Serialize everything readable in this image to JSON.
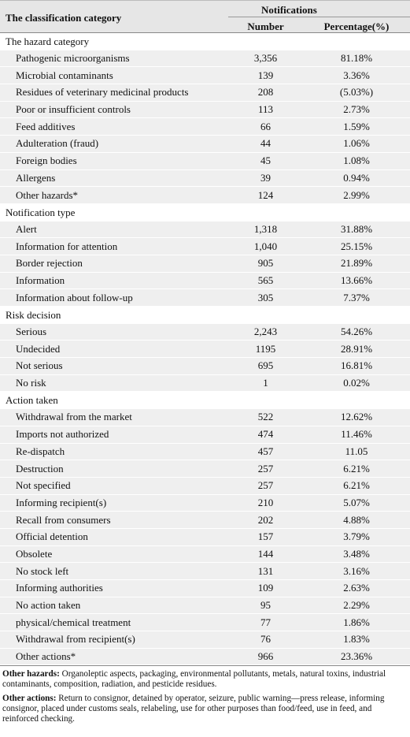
{
  "header": {
    "category": "The classification category",
    "group": "Notifications",
    "number": "Number",
    "percentage": "Percentage(%)"
  },
  "sections": [
    {
      "title": "The hazard category",
      "rows": [
        [
          "Pathogenic microorganisms",
          "3,356",
          "81.18%"
        ],
        [
          "Microbial contaminants",
          "139",
          "3.36%"
        ],
        [
          "Residues of veterinary medicinal products",
          "208",
          "(5.03%)"
        ],
        [
          "Poor or insufficient controls",
          "113",
          "2.73%"
        ],
        [
          "Feed additives",
          "66",
          "1.59%"
        ],
        [
          "Adulteration (fraud)",
          "44",
          "1.06%"
        ],
        [
          "Foreign bodies",
          "45",
          "1.08%"
        ],
        [
          "Allergens",
          "39",
          "0.94%"
        ],
        [
          "Other hazards*",
          "124",
          "2.99%"
        ]
      ]
    },
    {
      "title": "Notification type",
      "rows": [
        [
          "Alert",
          "1,318",
          "31.88%"
        ],
        [
          "Information for attention",
          "1,040",
          "25.15%"
        ],
        [
          "Border rejection",
          "905",
          "21.89%"
        ],
        [
          "Information",
          "565",
          "13.66%"
        ],
        [
          "Information about follow-up",
          "305",
          "7.37%"
        ]
      ]
    },
    {
      "title": "Risk decision",
      "rows": [
        [
          "Serious",
          "2,243",
          "54.26%"
        ],
        [
          "Undecided",
          "1195",
          "28.91%"
        ],
        [
          "Not serious",
          "695",
          "16.81%"
        ],
        [
          "No risk",
          "1",
          "0.02%"
        ]
      ]
    },
    {
      "title": "Action taken",
      "rows": [
        [
          "Withdrawal from the market",
          "522",
          "12.62%"
        ],
        [
          "Imports not authorized",
          "474",
          "11.46%"
        ],
        [
          "Re-dispatch",
          "457",
          "11.05"
        ],
        [
          "Destruction",
          "257",
          "6.21%"
        ],
        [
          "Not specified",
          "257",
          "6.21%"
        ],
        [
          "Informing recipient(s)",
          "210",
          "5.07%"
        ],
        [
          "Recall from consumers",
          "202",
          "4.88%"
        ],
        [
          "Official detention",
          "157",
          "3.79%"
        ],
        [
          "Obsolete",
          "144",
          "3.48%"
        ],
        [
          "No stock left",
          "131",
          "3.16%"
        ],
        [
          "Informing authorities",
          "109",
          "2.63%"
        ],
        [
          "No action taken",
          "95",
          "2.29%"
        ],
        [
          "physical/chemical treatment",
          "77",
          "1.86%"
        ],
        [
          "Withdrawal from recipient(s)",
          "76",
          "1.83%"
        ],
        [
          "Other actions*",
          "966",
          "23.36%"
        ]
      ]
    }
  ],
  "notes": [
    {
      "term": "Other hazards:",
      "text": "Organoleptic aspects, packaging, environmental pollutants, metals, natural toxins, industrial contaminants, composition, radiation, and pesticide residues."
    },
    {
      "term": "Other actions:",
      "text": "Return to consignor, detained by operator, seizure, public warning—press release, informing consignor, placed under customs seals, relabeling, use for other purposes than food/feed, use in feed, and reinforced checking."
    }
  ]
}
